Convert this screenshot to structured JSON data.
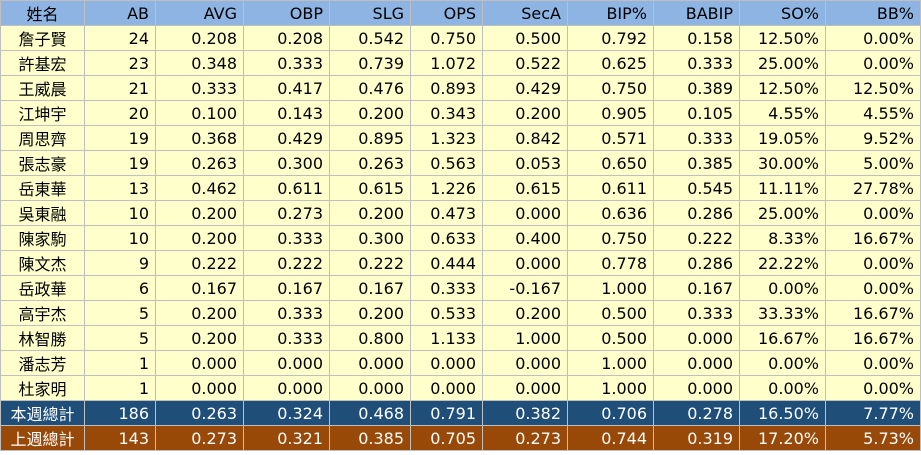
{
  "headers": [
    "姓名",
    "AB",
    "AVG",
    "OBP",
    "SLG",
    "OPS",
    "SecA",
    "BIP%",
    "BABIP",
    "SO%",
    "BB%"
  ],
  "rows": [
    [
      "詹子賢",
      "24",
      "0.208",
      "0.208",
      "0.542",
      "0.750",
      "0.500",
      "0.792",
      "0.158",
      "12.50%",
      "0.00%"
    ],
    [
      "許基宏",
      "23",
      "0.348",
      "0.333",
      "0.739",
      "1.072",
      "0.522",
      "0.625",
      "0.333",
      "25.00%",
      "0.00%"
    ],
    [
      "王威晨",
      "21",
      "0.333",
      "0.417",
      "0.476",
      "0.893",
      "0.429",
      "0.750",
      "0.389",
      "12.50%",
      "12.50%"
    ],
    [
      "江坤宇",
      "20",
      "0.100",
      "0.143",
      "0.200",
      "0.343",
      "0.200",
      "0.905",
      "0.105",
      "4.55%",
      "4.55%"
    ],
    [
      "周思齊",
      "19",
      "0.368",
      "0.429",
      "0.895",
      "1.323",
      "0.842",
      "0.571",
      "0.333",
      "19.05%",
      "9.52%"
    ],
    [
      "張志豪",
      "19",
      "0.263",
      "0.300",
      "0.263",
      "0.563",
      "0.053",
      "0.650",
      "0.385",
      "30.00%",
      "5.00%"
    ],
    [
      "岳東華",
      "13",
      "0.462",
      "0.611",
      "0.615",
      "1.226",
      "0.615",
      "0.611",
      "0.545",
      "11.11%",
      "27.78%"
    ],
    [
      "吳東融",
      "10",
      "0.200",
      "0.273",
      "0.200",
      "0.473",
      "0.000",
      "0.636",
      "0.286",
      "25.00%",
      "0.00%"
    ],
    [
      "陳家駒",
      "10",
      "0.200",
      "0.333",
      "0.300",
      "0.633",
      "0.400",
      "0.750",
      "0.222",
      "8.33%",
      "16.67%"
    ],
    [
      "陳文杰",
      "9",
      "0.222",
      "0.222",
      "0.222",
      "0.444",
      "0.000",
      "0.778",
      "0.286",
      "22.22%",
      "0.00%"
    ],
    [
      "岳政華",
      "6",
      "0.167",
      "0.167",
      "0.167",
      "0.333",
      "-0.167",
      "1.000",
      "0.167",
      "0.00%",
      "0.00%"
    ],
    [
      "高宇杰",
      "5",
      "0.200",
      "0.333",
      "0.200",
      "0.533",
      "0.200",
      "0.500",
      "0.333",
      "33.33%",
      "16.67%"
    ],
    [
      "林智勝",
      "5",
      "0.200",
      "0.333",
      "0.800",
      "1.133",
      "1.000",
      "0.500",
      "0.000",
      "16.67%",
      "16.67%"
    ],
    [
      "潘志芳",
      "1",
      "0.000",
      "0.000",
      "0.000",
      "0.000",
      "0.000",
      "1.000",
      "0.000",
      "0.00%",
      "0.00%"
    ],
    [
      "杜家明",
      "1",
      "0.000",
      "0.000",
      "0.000",
      "0.000",
      "0.000",
      "1.000",
      "0.000",
      "0.00%",
      "0.00%"
    ]
  ],
  "totals": {
    "this_week": [
      "本週總計",
      "186",
      "0.263",
      "0.324",
      "0.468",
      "0.791",
      "0.382",
      "0.706",
      "0.278",
      "16.50%",
      "7.77%"
    ],
    "last_week": [
      "上週總計",
      "143",
      "0.273",
      "0.321",
      "0.385",
      "0.705",
      "0.273",
      "0.744",
      "0.319",
      "17.20%",
      "5.73%"
    ]
  },
  "colors": {
    "header_bg": "#8db4e2",
    "row_bg": "#ffffcc",
    "this_week_bg": "#1f4e79",
    "last_week_bg": "#984807"
  }
}
